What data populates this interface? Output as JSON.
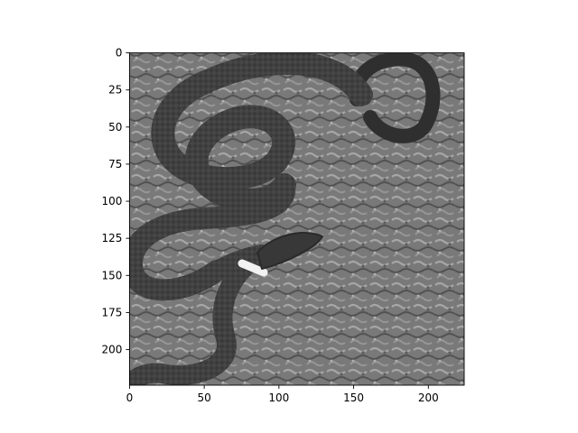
{
  "figure": {
    "background": "#ffffff",
    "image_extent": {
      "x": [
        0,
        224
      ],
      "y": [
        0,
        224
      ],
      "y_inverted": true
    },
    "x_ticks": [
      {
        "value": 0,
        "label": "0"
      },
      {
        "value": 50,
        "label": "50"
      },
      {
        "value": 100,
        "label": "100"
      },
      {
        "value": 150,
        "label": "150"
      },
      {
        "value": 200,
        "label": "200"
      }
    ],
    "y_ticks": [
      {
        "value": 0,
        "label": "0"
      },
      {
        "value": 25,
        "label": "25"
      },
      {
        "value": 50,
        "label": "50"
      },
      {
        "value": 75,
        "label": "75"
      },
      {
        "value": 100,
        "label": "100"
      },
      {
        "value": 125,
        "label": "125"
      },
      {
        "value": 150,
        "label": "150"
      },
      {
        "value": 175,
        "label": "175"
      },
      {
        "value": 200,
        "label": "200"
      }
    ],
    "image": {
      "content": "grayscale photo of a dark ring-necked snake coiled on moss",
      "colormap": "gray",
      "colors": {
        "snake_body": "#3a3a3a",
        "moss_light": "#a8a8a8",
        "moss_dark": "#5e5e5e",
        "neck_ring": "#f2f2f2"
      }
    }
  }
}
